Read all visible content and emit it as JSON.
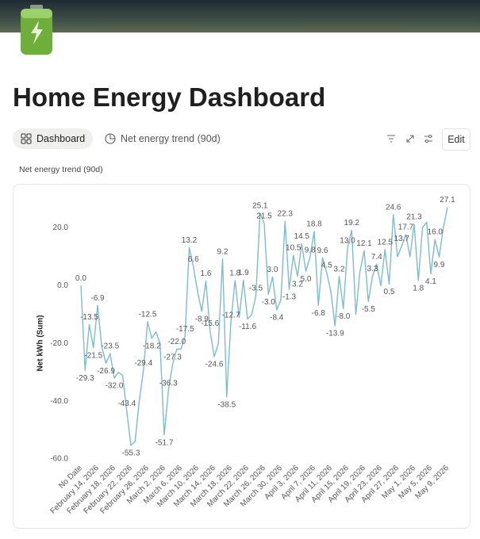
{
  "header": {
    "title": "Home Energy Dashboard",
    "tabs": [
      "Dashboard",
      "Net energy trend (90d)"
    ],
    "edit": "Edit"
  },
  "chart_data": {
    "type": "line",
    "title": "Net energy trend (90d)",
    "y_label": "Net kWh (Sum)",
    "categories": [
      "No Date",
      null,
      null,
      null,
      "February 14, 2026",
      null,
      null,
      null,
      "February 18, 2026",
      null,
      null,
      null,
      "February 22, 2026",
      null,
      null,
      null,
      "February 26, 2026",
      null,
      null,
      null,
      "March 2, 2026",
      null,
      null,
      null,
      "March 6, 2026",
      null,
      null,
      null,
      "March 10, 2026",
      null,
      null,
      null,
      "March 14, 2026",
      null,
      null,
      null,
      "March 18, 2026",
      null,
      null,
      null,
      "March 22, 2026",
      null,
      null,
      null,
      "March 26, 2026",
      null,
      null,
      null,
      "March 30, 2026",
      null,
      null,
      null,
      "April 3, 2026",
      null,
      null,
      null,
      "April 7, 2026",
      null,
      null,
      null,
      "April 11, 2026",
      null,
      null,
      null,
      "April 15, 2026",
      null,
      null,
      null,
      "April 19, 2026",
      null,
      null,
      null,
      "April 23, 2026",
      null,
      null,
      null,
      "April 27, 2026",
      null,
      null,
      null,
      "May 1, 2026",
      null,
      null,
      null,
      "May 5, 2026",
      null,
      null,
      null,
      "May 9, 2026"
    ],
    "series": [
      {
        "name": "Net kWh (Sum)",
        "color": "#7dbccb",
        "values": [
          0,
          -29.3,
          -13.5,
          -21.5,
          -6.9,
          -21,
          -26.9,
          -23.5,
          -32.0,
          -30,
          -31,
          -43.4,
          -55.3,
          -54,
          -40,
          -29.4,
          -12.5,
          -18.2,
          -16,
          -20,
          -51.7,
          -36.3,
          -27.3,
          -22.0,
          -22,
          -17.5,
          13.2,
          6.6,
          -2,
          -8.9,
          1.6,
          -15.6,
          -24.6,
          -20,
          9.2,
          -38.5,
          -12.7,
          1.8,
          -11,
          1.9,
          -11.6,
          -10,
          -3.5,
          25.1,
          21.5,
          -3.0,
          3.0,
          -8.4,
          -5,
          22.3,
          -1.3,
          10.5,
          3.2,
          14.5,
          5.0,
          9.8,
          18.8,
          -6.8,
          9.6,
          4.5,
          -2,
          -13.9,
          3.2,
          -8.0,
          13.0,
          19.2,
          -10,
          5,
          12.1,
          -5.5,
          3.3,
          7.4,
          0,
          12.5,
          0.5,
          24.6,
          10,
          13.7,
          17.7,
          10,
          21.3,
          1.8,
          20,
          22,
          4.1,
          16.0,
          9.9,
          20,
          27.1
        ],
        "value_labels": [
          "0.0",
          "-29.3",
          "-13.5",
          "-21.5",
          "-6.9",
          null,
          "-26.9",
          "-23.5",
          "-32.0",
          null,
          null,
          "-43.4",
          "-55.3",
          null,
          null,
          "-29.4",
          "-12.5",
          "-18.2",
          null,
          null,
          "-51.7",
          "-36.3",
          "-27.3",
          "-22.0",
          null,
          "-17.5",
          "13.2",
          "6.6",
          null,
          "-8.9",
          "1.6",
          "-15.6",
          "-24.6",
          null,
          "9.2",
          "-38.5",
          "-12.7",
          "1.8",
          null,
          "1.9",
          "-11.6",
          null,
          "-3.5",
          "25.1",
          "21.5",
          "-3.0",
          "3.0",
          "-8.4",
          null,
          "22.3",
          "-1.3",
          "10.5",
          "3.2",
          "14.5",
          "5.0",
          "9.8",
          "18.8",
          "-6.8",
          "9.6",
          "4.5",
          null,
          "-13.9",
          "3.2",
          "-8.0",
          "13.0",
          "19.2",
          null,
          null,
          "12.1",
          "-5.5",
          "3.3",
          "7.4",
          null,
          "12.5",
          "0.5",
          "24.6",
          null,
          "13.7",
          "17.7",
          null,
          "21.3",
          "1.8",
          null,
          null,
          "4.1",
          "16.0",
          "9.9",
          null,
          "27.1"
        ]
      }
    ],
    "ylim": [
      -60,
      30
    ],
    "yticks": [
      {
        "value": -60,
        "label": "-60.0"
      },
      {
        "value": -40,
        "label": "-40.0"
      },
      {
        "value": -20,
        "label": "-20.0"
      },
      {
        "value": 0,
        "label": "0.0"
      },
      {
        "value": 20,
        "label": "20.0"
      }
    ],
    "grid": false
  }
}
